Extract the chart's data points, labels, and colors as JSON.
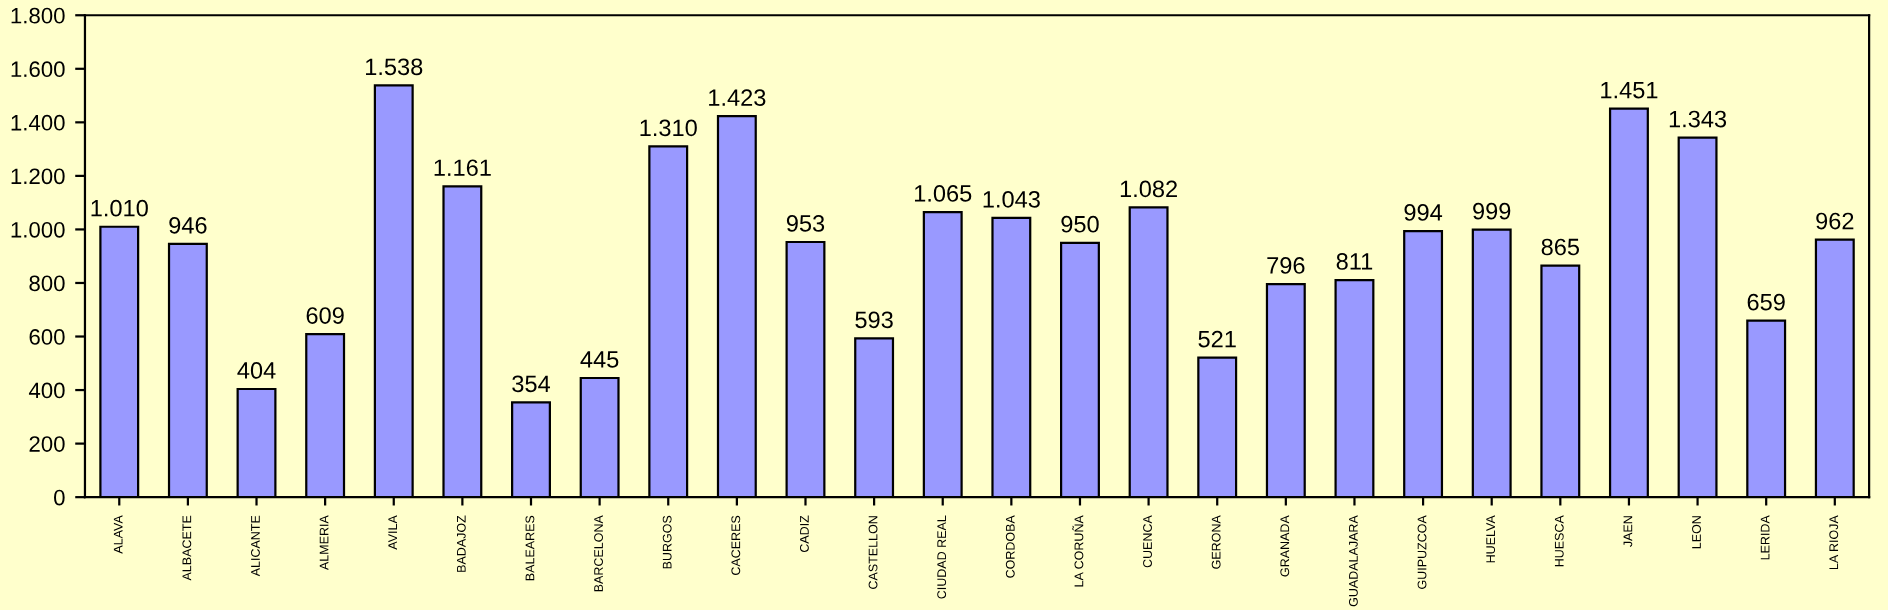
{
  "chart_data": {
    "type": "bar",
    "categories": [
      "ALAVA",
      "ALBACETE",
      "ALICANTE",
      "ALMERIA",
      "AVILA",
      "BADAJOZ",
      "BALEARES",
      "BARCELONA",
      "BURGOS",
      "CACERES",
      "CADIZ",
      "CASTELLON",
      "CIUDAD REAL",
      "CORDOBA",
      "LA CORUÑA",
      "CUENCA",
      "GERONA",
      "GRANADA",
      "GUADALAJARA",
      "GUIPUZCOA",
      "HUELVA",
      "HUESCA",
      "JAEN",
      "LEON",
      "LERIDA",
      "LA RIOJA"
    ],
    "values": [
      1010,
      946,
      404,
      609,
      1538,
      1161,
      354,
      445,
      1310,
      1423,
      953,
      593,
      1065,
      1043,
      950,
      1082,
      521,
      796,
      811,
      994,
      999,
      865,
      1451,
      1343,
      659,
      962
    ],
    "value_labels": [
      "1.010",
      "946",
      "404",
      "609",
      "1.538",
      "1.161",
      "354",
      "445",
      "1.310",
      "1.423",
      "953",
      "593",
      "1.065",
      "1.043",
      "950",
      "1.082",
      "521",
      "796",
      "811",
      "994",
      "999",
      "865",
      "1.451",
      "1.343",
      "659",
      "962"
    ],
    "color": "#9999ff",
    "ylim": [
      0,
      1800
    ],
    "yticks": [
      0,
      200,
      400,
      600,
      800,
      {
        "value": 1000,
        "label": "1.000"
      },
      {
        "value": 1200,
        "label": "1.200"
      },
      {
        "value": 1400,
        "label": "1.400"
      },
      {
        "value": 1600,
        "label": "1.600"
      },
      {
        "value": 1800,
        "label": "1.800"
      }
    ],
    "grid": false,
    "legend": false
  }
}
